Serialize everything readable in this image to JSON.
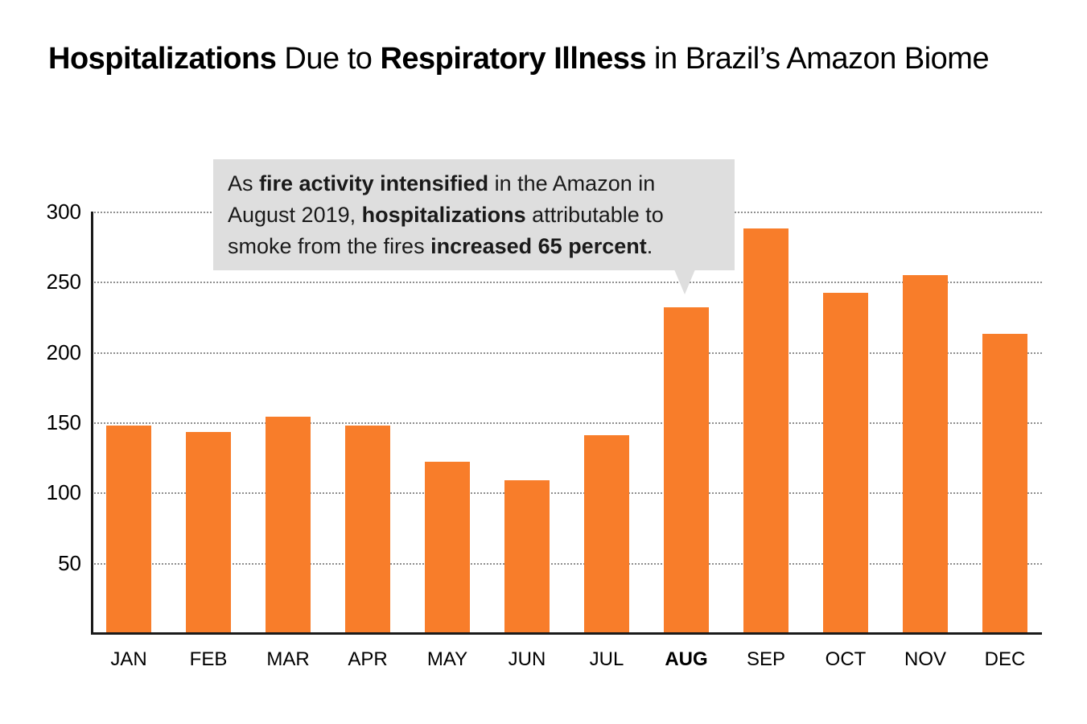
{
  "title": {
    "bold1": "Hospitalizations",
    "reg1": " Due to ",
    "bold2": "Respiratory Illness",
    "reg2": " in Brazil’s Amazon Biome"
  },
  "annotation": {
    "s1": "As ",
    "b1": "fire activity intensified",
    "s2": " in the Amazon in August 2019, ",
    "b2": "hospitalizations",
    "s3": " attributable to smoke from the fires ",
    "b3": "increased 65 percent",
    "s4": ".",
    "background_color": "#dedede",
    "points_to": "AUG"
  },
  "chart_data": {
    "type": "bar",
    "categories": [
      "JAN",
      "FEB",
      "MAR",
      "APR",
      "MAY",
      "JUN",
      "JUL",
      "AUG",
      "SEP",
      "OCT",
      "NOV",
      "DEC"
    ],
    "values": [
      148,
      143,
      154,
      148,
      122,
      109,
      141,
      232,
      288,
      242,
      255,
      213
    ],
    "title": "Hospitalizations Due to Respiratory Illness in Brazil’s Amazon Biome",
    "xlabel": "",
    "ylabel": "",
    "ylim": [
      0,
      300
    ],
    "yticks": [
      50,
      100,
      150,
      200,
      250,
      300
    ],
    "highlighted_category": "AUG",
    "bar_color": "#f87d2a",
    "grid": "horizontal-dotted",
    "legend": "none",
    "axis_color": "#1a1a1a",
    "gridline_color": "#8f8f8f"
  }
}
